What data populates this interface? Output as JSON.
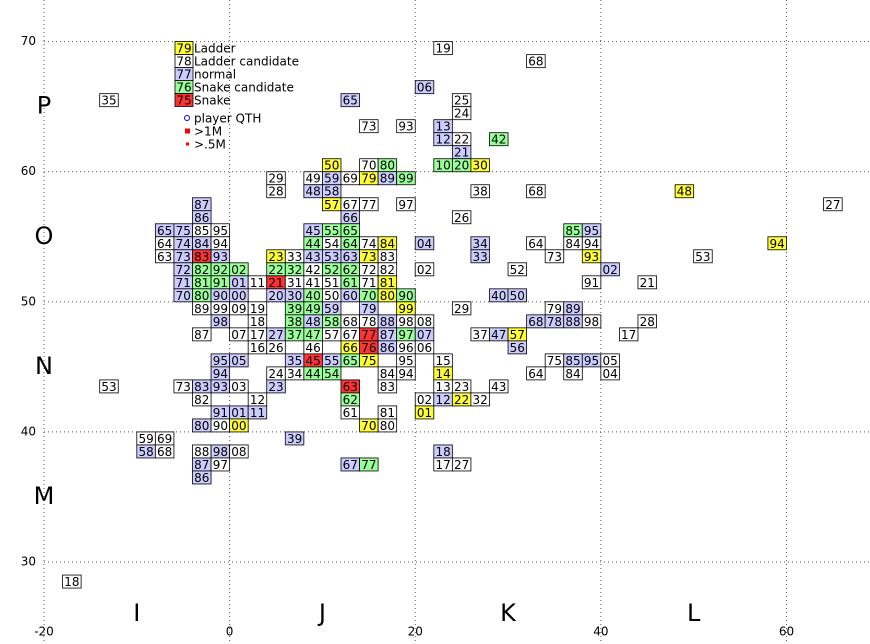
{
  "chart_data": {
    "type": "grid-map",
    "xlim": [
      -20,
      69
    ],
    "ylim": [
      23.7,
      73.2
    ],
    "xticks": [
      -20,
      0,
      20,
      40,
      60
    ],
    "yticks": [
      30,
      40,
      50,
      60,
      70
    ],
    "grid": true,
    "field_labels_x": [
      {
        "value": -10,
        "label": "I"
      },
      {
        "value": 10,
        "label": "J"
      },
      {
        "value": 30,
        "label": "K"
      },
      {
        "value": 50,
        "label": "L"
      }
    ],
    "field_labels_y": [
      {
        "value": 35,
        "label": "M"
      },
      {
        "value": 45,
        "label": "N"
      },
      {
        "value": 55,
        "label": "O"
      },
      {
        "value": 65,
        "label": "P"
      }
    ],
    "legend": [
      {
        "sample": "79",
        "label": "Ladder",
        "color": "#ffff33"
      },
      {
        "sample": "78",
        "label": "Ladder candidate",
        "color": "#ffffff"
      },
      {
        "sample": "77",
        "label": "normal",
        "color": "#ccccff"
      },
      {
        "sample": "76",
        "label": "Snake candidate",
        "color": "#99ff99"
      },
      {
        "sample": "75",
        "label": "Snake",
        "color": "#ff3333"
      }
    ],
    "marker_legend": [
      {
        "label": "player QTH",
        "color": "#0000ff"
      },
      {
        "label": ">1M",
        "color": "#ff0000"
      },
      {
        "label": ">.5M",
        "color": "#ff0000"
      }
    ],
    "squares": [
      [
        "35",
        -14,
        65,
        1
      ],
      [
        "65",
        12,
        65,
        2
      ],
      [
        "73",
        14,
        63,
        1
      ],
      [
        "93",
        18,
        63,
        1
      ],
      [
        "50",
        10,
        60,
        0
      ],
      [
        "70",
        14,
        60,
        1
      ],
      [
        "80",
        16,
        60,
        3
      ],
      [
        "06",
        20,
        66,
        2
      ],
      [
        "19",
        22,
        69,
        1
      ],
      [
        "68",
        32,
        68,
        1
      ],
      [
        "25",
        24,
        65,
        1
      ],
      [
        "24",
        24,
        64,
        1
      ],
      [
        "13",
        22,
        63,
        2
      ],
      [
        "12",
        22,
        62,
        2
      ],
      [
        "22",
        24,
        62,
        1
      ],
      [
        "42",
        28,
        62,
        3
      ],
      [
        "21",
        24,
        61,
        2
      ],
      [
        "10",
        22,
        60,
        3
      ],
      [
        "20",
        24,
        60,
        3
      ],
      [
        "30",
        26,
        60,
        0
      ],
      [
        "29",
        4,
        59,
        1
      ],
      [
        "28",
        4,
        58,
        1
      ],
      [
        "49",
        8,
        59,
        1
      ],
      [
        "59",
        10,
        59,
        2
      ],
      [
        "69",
        12,
        59,
        1
      ],
      [
        "79",
        14,
        59,
        0
      ],
      [
        "89",
        16,
        59,
        2
      ],
      [
        "99",
        18,
        59,
        3
      ],
      [
        "48",
        8,
        58,
        2
      ],
      [
        "58",
        10,
        58,
        2
      ],
      [
        "57",
        10,
        57,
        0
      ],
      [
        "67",
        12,
        57,
        1
      ],
      [
        "77",
        14,
        57,
        1
      ],
      [
        "97",
        18,
        57,
        1
      ],
      [
        "66",
        12,
        56,
        2
      ],
      [
        "45",
        8,
        55,
        2
      ],
      [
        "55",
        10,
        55,
        3
      ],
      [
        "65",
        12,
        55,
        3
      ],
      [
        "44",
        8,
        54,
        3
      ],
      [
        "54",
        10,
        54,
        1
      ],
      [
        "64",
        12,
        54,
        3
      ],
      [
        "74",
        14,
        54,
        1
      ],
      [
        "84",
        16,
        54,
        0
      ],
      [
        "23",
        4,
        53,
        0
      ],
      [
        "33",
        6,
        53,
        1
      ],
      [
        "43",
        8,
        53,
        2
      ],
      [
        "53",
        10,
        53,
        2
      ],
      [
        "63",
        12,
        53,
        2
      ],
      [
        "73",
        14,
        53,
        0
      ],
      [
        "83",
        16,
        53,
        1
      ],
      [
        "22",
        4,
        52,
        3
      ],
      [
        "32",
        6,
        52,
        3
      ],
      [
        "42",
        8,
        52,
        1
      ],
      [
        "52",
        10,
        52,
        3
      ],
      [
        "62",
        12,
        52,
        3
      ],
      [
        "72",
        14,
        52,
        1
      ],
      [
        "82",
        16,
        52,
        1
      ],
      [
        "02",
        0,
        52,
        3
      ],
      [
        "01",
        0,
        51,
        2
      ],
      [
        "11",
        2,
        51,
        1
      ],
      [
        "21",
        4,
        51,
        4
      ],
      [
        "31",
        6,
        51,
        1
      ],
      [
        "41",
        8,
        51,
        1
      ],
      [
        "51",
        10,
        51,
        1
      ],
      [
        "61",
        12,
        51,
        3
      ],
      [
        "71",
        14,
        51,
        1
      ],
      [
        "81",
        16,
        51,
        0
      ],
      [
        "00",
        0,
        50,
        2
      ],
      [
        "20",
        4,
        50,
        2
      ],
      [
        "30",
        6,
        50,
        2
      ],
      [
        "40",
        8,
        50,
        3
      ],
      [
        "50",
        10,
        50,
        1
      ],
      [
        "60",
        12,
        50,
        2
      ],
      [
        "70",
        14,
        50,
        3
      ],
      [
        "80",
        16,
        50,
        0
      ],
      [
        "90",
        18,
        50,
        3
      ],
      [
        "87",
        -4,
        57,
        2
      ],
      [
        "86",
        -4,
        56,
        2
      ],
      [
        "65",
        -8,
        55,
        2
      ],
      [
        "75",
        -6,
        55,
        2
      ],
      [
        "85",
        -4,
        55,
        1
      ],
      [
        "95",
        -2,
        55,
        1
      ],
      [
        "64",
        -8,
        54,
        1
      ],
      [
        "74",
        -6,
        54,
        2
      ],
      [
        "84",
        -4,
        54,
        2
      ],
      [
        "94",
        -2,
        54,
        1
      ],
      [
        "63",
        -8,
        53,
        1
      ],
      [
        "73",
        -6,
        53,
        2
      ],
      [
        "83",
        -4,
        53,
        4
      ],
      [
        "93",
        -2,
        53,
        2
      ],
      [
        "72",
        -6,
        52,
        2
      ],
      [
        "82",
        -4,
        52,
        3
      ],
      [
        "92",
        -2,
        52,
        3
      ],
      [
        "71",
        -6,
        51,
        2
      ],
      [
        "81",
        -4,
        51,
        3
      ],
      [
        "91",
        -2,
        51,
        3
      ],
      [
        "70",
        -6,
        50,
        2
      ],
      [
        "80",
        -4,
        50,
        3
      ],
      [
        "90",
        -2,
        50,
        2
      ],
      [
        "38",
        26,
        58,
        1
      ],
      [
        "68",
        32,
        58,
        1
      ],
      [
        "26",
        24,
        56,
        1
      ],
      [
        "04",
        20,
        54,
        2
      ],
      [
        "34",
        26,
        54,
        2
      ],
      [
        "64",
        32,
        54,
        1
      ],
      [
        "84",
        36,
        54,
        1
      ],
      [
        "94",
        38,
        54,
        1
      ],
      [
        "85",
        36,
        55,
        3
      ],
      [
        "95",
        38,
        55,
        2
      ],
      [
        "33",
        26,
        53,
        2
      ],
      [
        "73",
        34,
        53,
        1
      ],
      [
        "93",
        38,
        53,
        0
      ],
      [
        "02",
        20,
        52,
        1
      ],
      [
        "52",
        30,
        52,
        1
      ],
      [
        "91",
        38,
        51,
        1
      ],
      [
        "40",
        28,
        50,
        2
      ],
      [
        "50",
        30,
        50,
        2
      ],
      [
        "48",
        48,
        58,
        0
      ],
      [
        "27",
        64,
        57,
        1
      ],
      [
        "94",
        58,
        54,
        0
      ],
      [
        "02",
        40,
        52,
        2
      ],
      [
        "53",
        50,
        53,
        1
      ],
      [
        "21",
        44,
        51,
        1
      ],
      [
        "28",
        44,
        48,
        1
      ],
      [
        "89",
        -4,
        49,
        1
      ],
      [
        "99",
        -2,
        49,
        1
      ],
      [
        "09",
        0,
        49,
        1
      ],
      [
        "19",
        2,
        49,
        1
      ],
      [
        "39",
        6,
        49,
        3
      ],
      [
        "49",
        8,
        49,
        3
      ],
      [
        "59",
        10,
        49,
        2
      ],
      [
        "79",
        14,
        49,
        2
      ],
      [
        "99",
        18,
        49,
        0
      ],
      [
        "29",
        24,
        49,
        1
      ],
      [
        "79",
        34,
        49,
        1
      ],
      [
        "89",
        36,
        49,
        2
      ],
      [
        "98",
        -2,
        48,
        2
      ],
      [
        "18",
        2,
        48,
        1
      ],
      [
        "38",
        6,
        48,
        3
      ],
      [
        "48",
        8,
        48,
        2
      ],
      [
        "58",
        10,
        48,
        3
      ],
      [
        "68",
        12,
        48,
        1
      ],
      [
        "78",
        14,
        48,
        1
      ],
      [
        "88",
        16,
        48,
        2
      ],
      [
        "98",
        18,
        48,
        1
      ],
      [
        "08",
        20,
        48,
        1
      ],
      [
        "68",
        32,
        48,
        2
      ],
      [
        "78",
        34,
        48,
        2
      ],
      [
        "88",
        36,
        48,
        2
      ],
      [
        "98",
        38,
        48,
        1
      ],
      [
        "87",
        -4,
        47,
        1
      ],
      [
        "07",
        0,
        47,
        1
      ],
      [
        "17",
        2,
        47,
        1
      ],
      [
        "27",
        4,
        47,
        2
      ],
      [
        "37",
        6,
        47,
        3
      ],
      [
        "47",
        8,
        47,
        3
      ],
      [
        "57",
        10,
        47,
        1
      ],
      [
        "67",
        12,
        47,
        1
      ],
      [
        "77",
        14,
        47,
        4
      ],
      [
        "87",
        16,
        47,
        2
      ],
      [
        "97",
        18,
        47,
        3
      ],
      [
        "07",
        20,
        47,
        2
      ],
      [
        "37",
        26,
        47,
        1
      ],
      [
        "47",
        28,
        47,
        2
      ],
      [
        "57",
        30,
        47,
        0
      ],
      [
        "17",
        42,
        47,
        1
      ],
      [
        "16",
        2,
        46,
        1
      ],
      [
        "26",
        4,
        46,
        1
      ],
      [
        "46",
        8,
        46,
        1
      ],
      [
        "66",
        12,
        46,
        0
      ],
      [
        "76",
        14,
        46,
        4
      ],
      [
        "86",
        16,
        46,
        2
      ],
      [
        "96",
        18,
        46,
        1
      ],
      [
        "06",
        20,
        46,
        1
      ],
      [
        "56",
        30,
        46,
        2
      ],
      [
        "95",
        -2,
        45,
        2
      ],
      [
        "05",
        0,
        45,
        2
      ],
      [
        "35",
        6,
        45,
        2
      ],
      [
        "45",
        8,
        45,
        4
      ],
      [
        "55",
        10,
        45,
        2
      ],
      [
        "65",
        12,
        45,
        3
      ],
      [
        "75",
        14,
        45,
        0
      ],
      [
        "95",
        18,
        45,
        1
      ],
      [
        "15",
        22,
        45,
        1
      ],
      [
        "75",
        34,
        45,
        1
      ],
      [
        "85",
        36,
        45,
        2
      ],
      [
        "95",
        38,
        45,
        2
      ],
      [
        "05",
        40,
        45,
        1
      ],
      [
        "94",
        -2,
        44,
        2
      ],
      [
        "24",
        4,
        44,
        1
      ],
      [
        "34",
        6,
        44,
        1
      ],
      [
        "44",
        8,
        44,
        3
      ],
      [
        "54",
        10,
        44,
        3
      ],
      [
        "84",
        16,
        44,
        1
      ],
      [
        "94",
        18,
        44,
        1
      ],
      [
        "14",
        22,
        44,
        0
      ],
      [
        "64",
        32,
        44,
        1
      ],
      [
        "84",
        36,
        44,
        1
      ],
      [
        "04",
        40,
        44,
        1
      ],
      [
        "53",
        -14,
        43,
        1
      ],
      [
        "73",
        -6,
        43,
        1
      ],
      [
        "83",
        -4,
        43,
        2
      ],
      [
        "93",
        -2,
        43,
        2
      ],
      [
        "03",
        0,
        43,
        1
      ],
      [
        "23",
        4,
        43,
        2
      ],
      [
        "63",
        12,
        43,
        4
      ],
      [
        "83",
        16,
        43,
        1
      ],
      [
        "13",
        22,
        43,
        1
      ],
      [
        "23",
        24,
        43,
        1
      ],
      [
        "43",
        28,
        43,
        1
      ],
      [
        "82",
        -4,
        42,
        1
      ],
      [
        "12",
        2,
        42,
        1
      ],
      [
        "62",
        12,
        42,
        3
      ],
      [
        "02",
        20,
        42,
        1
      ],
      [
        "12",
        22,
        42,
        2
      ],
      [
        "22",
        24,
        42,
        0
      ],
      [
        "32",
        26,
        42,
        1
      ],
      [
        "91",
        -2,
        41,
        2
      ],
      [
        "01",
        0,
        41,
        2
      ],
      [
        "11",
        2,
        41,
        2
      ],
      [
        "61",
        12,
        41,
        1
      ],
      [
        "81",
        16,
        41,
        1
      ],
      [
        "01",
        20,
        41,
        0
      ],
      [
        "80",
        -4,
        40,
        2
      ],
      [
        "90",
        -2,
        40,
        1
      ],
      [
        "00",
        0,
        40,
        0
      ],
      [
        "70",
        14,
        40,
        0
      ],
      [
        "80",
        16,
        40,
        1
      ],
      [
        "59",
        -10,
        39,
        1
      ],
      [
        "69",
        -8,
        39,
        1
      ],
      [
        "39",
        6,
        39,
        2
      ],
      [
        "58",
        -10,
        38,
        2
      ],
      [
        "68",
        -8,
        38,
        1
      ],
      [
        "88",
        -4,
        38,
        1
      ],
      [
        "98",
        -2,
        38,
        2
      ],
      [
        "08",
        0,
        38,
        1
      ],
      [
        "18",
        22,
        38,
        2
      ],
      [
        "87",
        -4,
        37,
        2
      ],
      [
        "97",
        -2,
        37,
        1
      ],
      [
        "67",
        12,
        37,
        2
      ],
      [
        "77",
        14,
        37,
        3
      ],
      [
        "17",
        22,
        37,
        1
      ],
      [
        "27",
        24,
        37,
        1
      ],
      [
        "86",
        -4,
        36,
        2
      ],
      [
        "18",
        -18,
        28,
        1
      ]
    ]
  }
}
